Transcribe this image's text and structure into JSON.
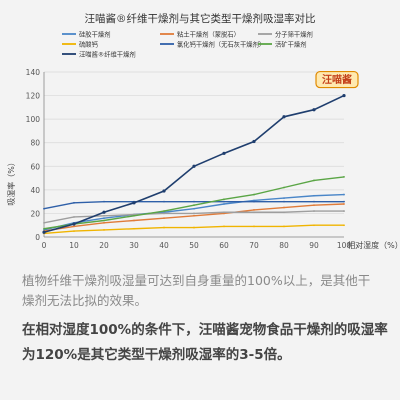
{
  "chart_data": {
    "type": "line",
    "title": "汪喵酱®纤维干燥剂与其它类型干燥剂吸湿率对比",
    "ylabel": "吸湿率（%）",
    "xlabel": "相对湿度（%）",
    "x": [
      0,
      10,
      20,
      30,
      40,
      50,
      60,
      70,
      80,
      90,
      100
    ],
    "xlim": [
      0,
      100
    ],
    "ylim": [
      0,
      140
    ],
    "yticks": [
      0,
      20,
      40,
      60,
      80,
      100,
      120,
      140
    ],
    "grid": true,
    "legend_position": "top",
    "series": [
      {
        "name": "硅胶干燥剂",
        "color": "#4a86c8",
        "values": [
          6,
          12,
          16,
          19,
          21,
          24,
          28,
          31,
          33,
          35,
          36
        ]
      },
      {
        "name": "粘土干燥剂（蒙脱石）",
        "color": "#e07b39",
        "values": [
          5,
          9,
          12,
          14,
          16,
          18,
          20,
          23,
          25,
          27,
          28
        ]
      },
      {
        "name": "分子筛干燥剂",
        "color": "#9e9e9e",
        "values": [
          12,
          17,
          18,
          19,
          20,
          20,
          21,
          21,
          21,
          22,
          22
        ]
      },
      {
        "name": "硫酸钙",
        "color": "#f0b400",
        "values": [
          3,
          5,
          6,
          7,
          8,
          8,
          9,
          9,
          9,
          10,
          10
        ]
      },
      {
        "name": "氯化钙干燥剂（无石灰干燥剂）",
        "color": "#2e5fa8",
        "values": [
          24,
          29,
          30,
          30,
          30,
          30,
          30,
          30,
          30,
          30,
          30
        ]
      },
      {
        "name": "活矿干燥剂",
        "color": "#5aa545",
        "values": [
          7,
          11,
          14,
          18,
          22,
          27,
          32,
          36,
          42,
          48,
          51
        ]
      },
      {
        "name": "汪喵酱®纤维干燥剂",
        "color": "#1f3e6e",
        "values": [
          4,
          11,
          21,
          29,
          39,
          60,
          71,
          81,
          102,
          108,
          120
        ]
      }
    ]
  },
  "logo_text": "汪喵酱",
  "caption": "植物纤维干燥剂吸湿量可达到自身重量的100%以上，是其他干燥剂无法比拟的效果。",
  "highlight": "在相对湿度100%的条件下，汪喵酱宠物食品干燥剂的吸湿率为120%是其它类型干燥剂吸湿率的3-5倍。"
}
